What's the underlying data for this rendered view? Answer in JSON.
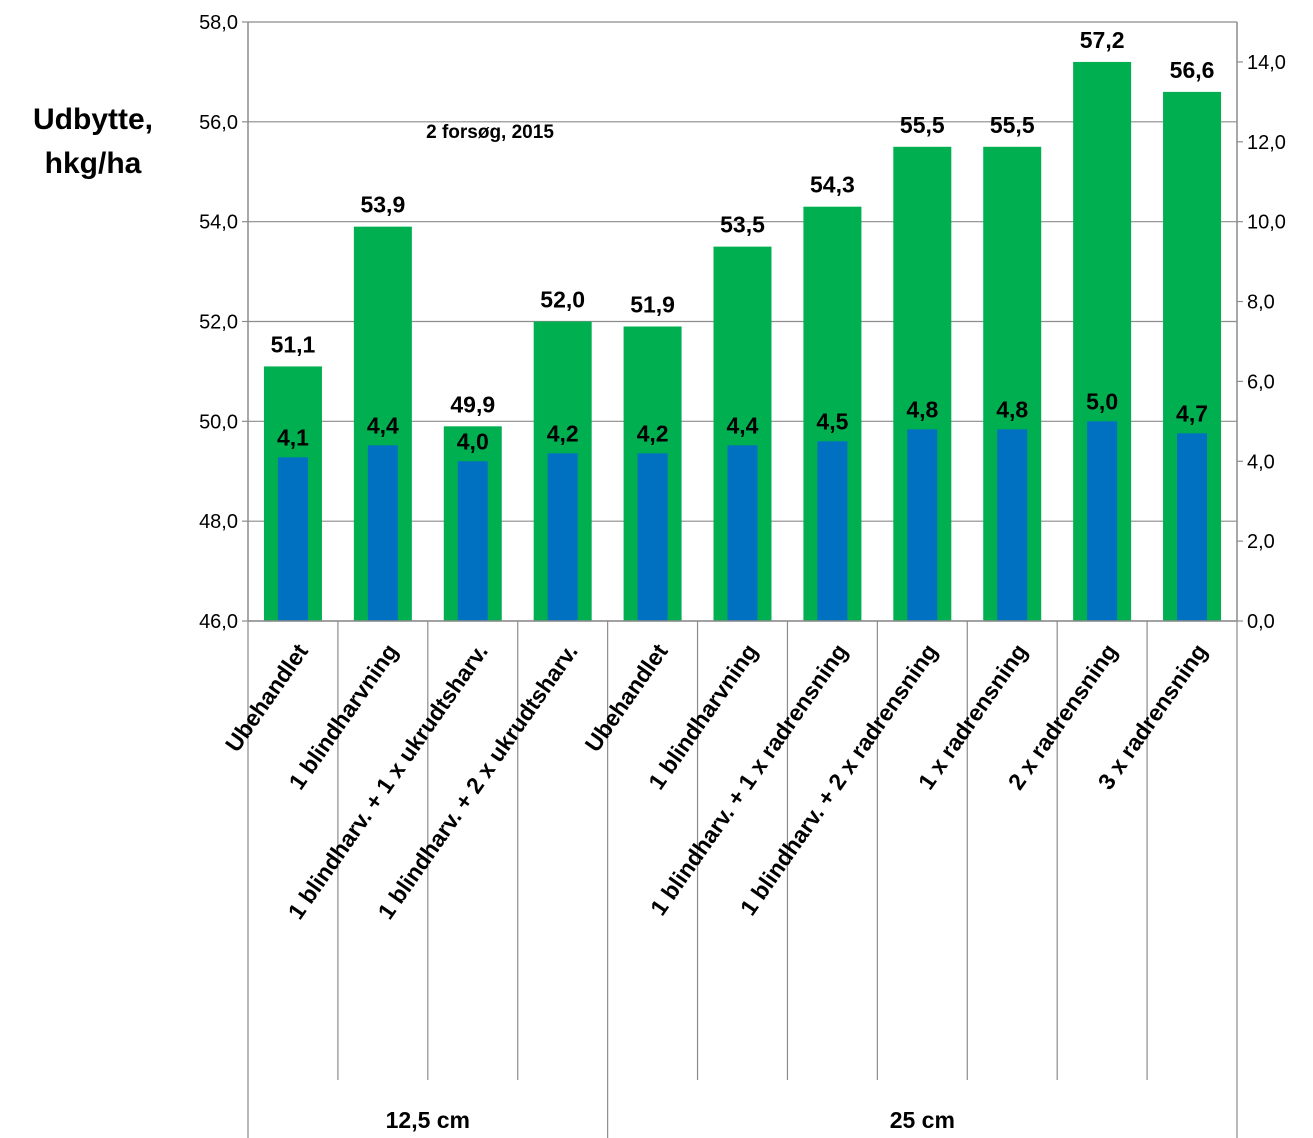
{
  "chart_data": {
    "type": "bar",
    "title": "",
    "annotation": "2 forsøg, 2015",
    "ylabel": [
      "Udbytte,",
      "hkg/ha"
    ],
    "categories": [
      "Ubehandlet",
      "1 blindharvning",
      "1 blindharv. + 1 x ukrudtsharv.",
      "1 blindharv. + 2 x ukrudtsharv.",
      "Ubehandlet",
      "1 blindharvning",
      "1 blindharv. + 1 x radrensning",
      "1 blindharv. + 2 x radrensning",
      "1 x radrensning",
      "2 x radrensning",
      "3 x radrensning"
    ],
    "groups": [
      {
        "label": "12,5 cm",
        "count": 4
      },
      {
        "label": "25 cm",
        "count": 7
      }
    ],
    "series": [
      {
        "axis": "left",
        "color": "#00b050",
        "values": [
          51.1,
          53.9,
          49.9,
          52.0,
          51.9,
          53.5,
          54.3,
          55.5,
          55.5,
          57.2,
          56.6
        ],
        "labels": [
          "51,1",
          "53,9",
          "49,9",
          "52,0",
          "51,9",
          "53,5",
          "54,3",
          "55,5",
          "55,5",
          "57,2",
          "56,6"
        ]
      },
      {
        "axis": "right",
        "color": "#0070c0",
        "values": [
          4.1,
          4.4,
          4.0,
          4.2,
          4.2,
          4.4,
          4.5,
          4.8,
          4.8,
          5.0,
          4.7
        ],
        "labels": [
          "4,1",
          "4,4",
          "4,0",
          "4,2",
          "4,2",
          "4,4",
          "4,5",
          "4,8",
          "4,8",
          "5,0",
          "4,7"
        ]
      }
    ],
    "ylim": [
      46,
      58
    ],
    "yticks": [
      "46,0",
      "48,0",
      "50,0",
      "52,0",
      "54,0",
      "56,0",
      "58,0"
    ],
    "y2lim": [
      0,
      15
    ],
    "y2ticks": [
      "0,0",
      "2,0",
      "4,0",
      "6,0",
      "8,0",
      "10,0",
      "12,0",
      "14,0"
    ],
    "grid": true
  }
}
